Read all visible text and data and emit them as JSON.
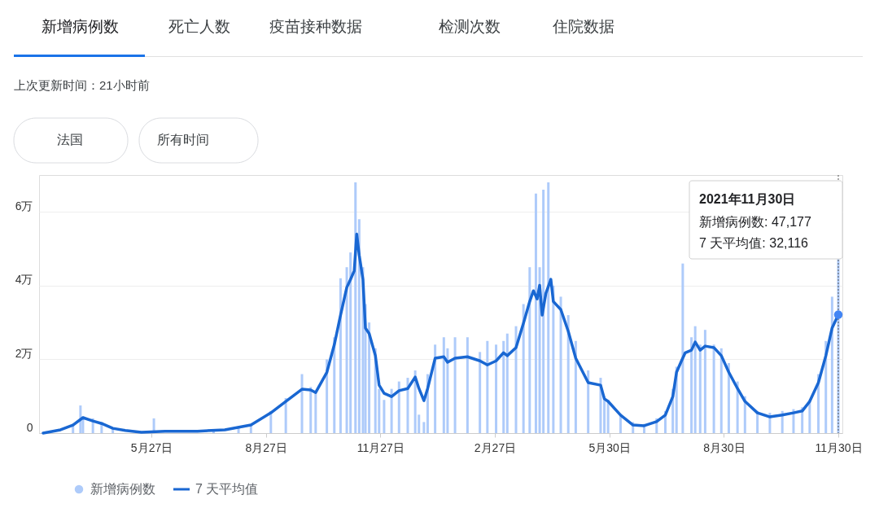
{
  "chart_data": {
    "type": "bar",
    "title": "新增病例数",
    "annotations": [
      "死亡人数",
      "疫苗接种数据",
      "检测次数",
      "住院数据",
      "上次更新时间：21小时前",
      "法国",
      "所有时间",
      "2021年11月30日",
      "新增病例数: 47,177",
      "7 天平均值: 32,116"
    ],
    "xlim": [
      "2020-03-01",
      "2021-11-30"
    ],
    "xticks": [
      {
        "value": "2020-05-27",
        "label": "5月27日"
      },
      {
        "value": "2020-08-27",
        "label": "8月27日"
      },
      {
        "value": "2020-11-27",
        "label": "11月27日"
      },
      {
        "value": "2021-02-27",
        "label": "2月27日"
      },
      {
        "value": "2021-05-30",
        "label": "5月30日"
      },
      {
        "value": "2021-08-30",
        "label": "8月30日"
      },
      {
        "value": "2021-11-30",
        "label": "11月30日"
      }
    ],
    "ylim": [
      0,
      7
    ],
    "yticks": [
      0,
      {
        "value": 2,
        "label": "2万"
      },
      {
        "value": 4,
        "label": "4万"
      },
      {
        "value": 6,
        "label": "6万"
      }
    ],
    "grid": "y",
    "legend": "bottom",
    "ref_lines": [
      {
        "axis": "x",
        "value": "2021-11-30",
        "label": null,
        "line_style": "dotted",
        "color": "#555555"
      }
    ],
    "series": [
      {
        "name": "新增病例数",
        "color": "#aecbfa",
        "x": [
          "2020-03-25",
          "2020-03-31",
          "2020-04-02",
          "2020-04-10",
          "2020-04-17",
          "2020-04-26",
          "2020-05-29",
          "2020-07-16",
          "2020-08-05",
          "2020-08-15",
          "2020-08-31",
          "2020-09-12",
          "2020-09-25",
          "2020-10-02",
          "2020-10-06",
          "2020-10-15",
          "2020-10-21",
          "2020-10-26",
          "2020-10-31",
          "2020-11-03",
          "2020-11-07",
          "2020-11-10",
          "2020-11-13",
          "2020-11-15",
          "2020-11-18",
          "2020-11-23",
          "2020-11-26",
          "2020-11-30",
          "2020-12-06",
          "2020-12-12",
          "2020-12-19",
          "2020-12-25",
          "2020-12-28",
          "2021-01-01",
          "2021-01-04",
          "2021-01-10",
          "2021-01-17",
          "2021-01-20",
          "2021-01-26",
          "2021-02-05",
          "2021-02-15",
          "2021-02-21",
          "2021-02-28",
          "2021-03-06",
          "2021-03-09",
          "2021-03-16",
          "2021-03-22",
          "2021-03-27",
          "2021-04-01",
          "2021-04-04",
          "2021-04-07",
          "2021-04-11",
          "2021-04-15",
          "2021-04-21",
          "2021-04-27",
          "2021-05-03",
          "2021-05-13",
          "2021-05-23",
          "2021-05-26",
          "2021-05-29",
          "2021-06-08",
          "2021-06-18",
          "2021-06-27",
          "2021-07-07",
          "2021-07-14",
          "2021-07-20",
          "2021-07-23",
          "2021-07-28",
          "2021-08-04",
          "2021-08-07",
          "2021-08-11",
          "2021-08-15",
          "2021-08-22",
          "2021-08-28",
          "2021-09-03",
          "2021-09-10",
          "2021-09-16",
          "2021-09-26",
          "2021-10-06",
          "2021-10-16",
          "2021-10-25",
          "2021-11-01",
          "2021-11-07",
          "2021-11-14",
          "2021-11-20",
          "2021-11-25",
          "2021-11-30"
        ],
        "values": [
          0.25,
          0.75,
          0.45,
          0.4,
          0.3,
          0.15,
          0.4,
          0.07,
          0.17,
          0.25,
          0.6,
          0.95,
          1.6,
          1.25,
          1.15,
          2.0,
          2.6,
          4.2,
          4.5,
          4.9,
          6.8,
          5.8,
          4.5,
          3.5,
          3.0,
          2.3,
          1.2,
          0.9,
          1.2,
          1.4,
          1.5,
          1.7,
          0.5,
          0.3,
          1.6,
          2.4,
          2.6,
          2.3,
          2.6,
          2.6,
          2.2,
          2.5,
          2.4,
          2.5,
          2.7,
          2.9,
          3.5,
          4.5,
          6.5,
          4.5,
          6.6,
          6.8,
          4.0,
          3.7,
          3.2,
          2.5,
          1.7,
          1.5,
          1.0,
          0.9,
          0.5,
          0.3,
          0.25,
          0.4,
          0.6,
          1.2,
          1.8,
          4.6,
          2.6,
          2.9,
          2.4,
          2.8,
          2.4,
          2.3,
          1.9,
          1.4,
          1.0,
          0.6,
          0.55,
          0.6,
          0.65,
          0.7,
          0.9,
          1.6,
          2.5,
          3.7,
          4.7177
        ]
      },
      {
        "name": "7 天平均值",
        "type": "line",
        "color": "#1967d2",
        "line_style": "solid",
        "marker": "none",
        "x": [
          "2020-03-01",
          "2020-03-15",
          "2020-03-25",
          "2020-04-02",
          "2020-04-10",
          "2020-04-17",
          "2020-04-26",
          "2020-05-06",
          "2020-05-19",
          "2020-06-07",
          "2020-07-03",
          "2020-07-25",
          "2020-08-15",
          "2020-08-31",
          "2020-09-12",
          "2020-09-25",
          "2020-10-02",
          "2020-10-06",
          "2020-10-15",
          "2020-10-21",
          "2020-10-26",
          "2020-10-31",
          "2020-11-03",
          "2020-11-06",
          "2020-11-08",
          "2020-11-10",
          "2020-11-13",
          "2020-11-15",
          "2020-11-18",
          "2020-11-23",
          "2020-11-26",
          "2020-11-30",
          "2020-12-06",
          "2020-12-12",
          "2020-12-19",
          "2020-12-25",
          "2020-12-28",
          "2021-01-01",
          "2021-01-04",
          "2021-01-10",
          "2021-01-17",
          "2021-01-20",
          "2021-01-26",
          "2021-02-05",
          "2021-02-15",
          "2021-02-21",
          "2021-02-28",
          "2021-03-06",
          "2021-03-09",
          "2021-03-16",
          "2021-03-22",
          "2021-03-27",
          "2021-03-30",
          "2021-04-02",
          "2021-04-04",
          "2021-04-06",
          "2021-04-09",
          "2021-04-13",
          "2021-04-15",
          "2021-04-21",
          "2021-04-27",
          "2021-05-03",
          "2021-05-13",
          "2021-05-23",
          "2021-05-26",
          "2021-05-29",
          "2021-06-08",
          "2021-06-18",
          "2021-06-27",
          "2021-07-07",
          "2021-07-14",
          "2021-07-20",
          "2021-07-23",
          "2021-07-27",
          "2021-07-30",
          "2021-08-04",
          "2021-08-07",
          "2021-08-11",
          "2021-08-15",
          "2021-08-22",
          "2021-08-28",
          "2021-09-03",
          "2021-09-10",
          "2021-09-16",
          "2021-09-26",
          "2021-10-06",
          "2021-10-16",
          "2021-10-25",
          "2021-11-01",
          "2021-11-07",
          "2021-11-14",
          "2021-11-20",
          "2021-11-25",
          "2021-11-30"
        ],
        "values": [
          0,
          0.09,
          0.22,
          0.42,
          0.33,
          0.26,
          0.13,
          0.07,
          0.02,
          0.05,
          0.05,
          0.09,
          0.22,
          0.55,
          0.86,
          1.19,
          1.17,
          1.1,
          1.65,
          2.4,
          3.2,
          3.95,
          4.17,
          4.4,
          5.4,
          4.83,
          4.17,
          2.85,
          2.7,
          2.1,
          1.3,
          1.08,
          0.99,
          1.15,
          1.21,
          1.52,
          1.21,
          0.88,
          1.21,
          2.03,
          2.07,
          1.92,
          2.03,
          2.07,
          1.96,
          1.85,
          1.96,
          2.18,
          2.1,
          2.32,
          2.98,
          3.57,
          3.86,
          3.64,
          4.01,
          3.2,
          3.79,
          4.17,
          3.57,
          3.35,
          2.76,
          2.03,
          1.37,
          1.3,
          0.93,
          0.86,
          0.49,
          0.22,
          0.2,
          0.31,
          0.49,
          0.99,
          1.65,
          1.96,
          2.18,
          2.25,
          2.47,
          2.25,
          2.36,
          2.32,
          2.1,
          1.65,
          1.21,
          0.86,
          0.55,
          0.44,
          0.49,
          0.55,
          0.6,
          0.86,
          1.37,
          2.1,
          2.85,
          3.2116
        ]
      }
    ]
  }
}
